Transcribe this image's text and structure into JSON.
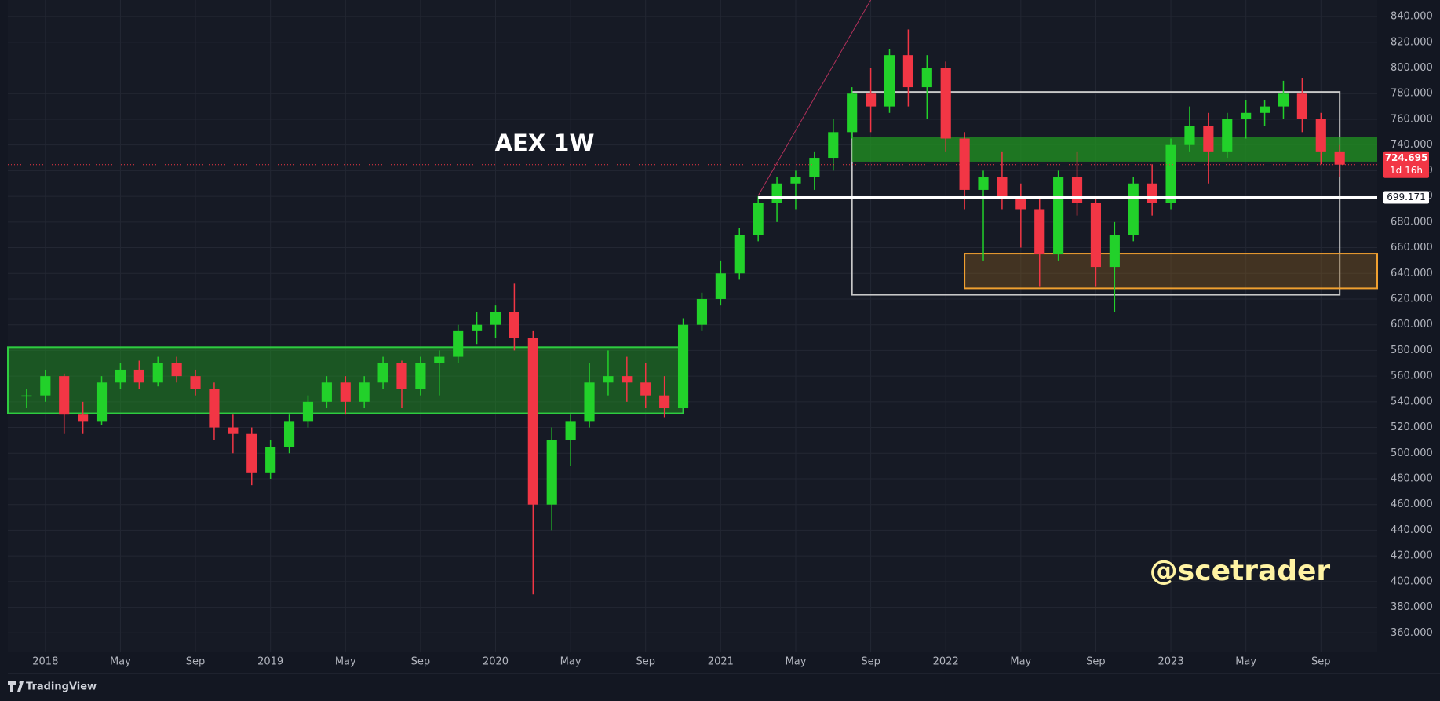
{
  "chart_data": {
    "type": "candlestick",
    "title": "AEX 1W",
    "watermark": "@scetrader",
    "x": [
      "2017-12",
      "2018-01",
      "2018-02",
      "2018-03",
      "2018-04",
      "2018-05",
      "2018-06",
      "2018-07",
      "2018-08",
      "2018-09",
      "2018-10",
      "2018-11",
      "2018-12",
      "2019-01",
      "2019-02",
      "2019-03",
      "2019-04",
      "2019-05",
      "2019-06",
      "2019-07",
      "2019-08",
      "2019-09",
      "2019-10",
      "2019-11",
      "2019-12",
      "2020-01",
      "2020-02",
      "2020-03",
      "2020-04",
      "2020-05",
      "2020-06",
      "2020-07",
      "2020-08",
      "2020-09",
      "2020-10",
      "2020-11",
      "2020-12",
      "2021-01",
      "2021-02",
      "2021-03",
      "2021-04",
      "2021-05",
      "2021-06",
      "2021-07",
      "2021-08",
      "2021-09",
      "2021-10",
      "2021-11",
      "2021-12",
      "2022-01",
      "2022-02",
      "2022-03",
      "2022-04",
      "2022-05",
      "2022-06",
      "2022-07",
      "2022-08",
      "2022-09",
      "2022-10",
      "2022-11",
      "2022-12",
      "2023-01",
      "2023-02",
      "2023-03",
      "2023-04",
      "2023-05",
      "2023-06",
      "2023-07",
      "2023-08",
      "2023-09",
      "2023-10"
    ],
    "open": [
      545,
      545,
      560,
      530,
      525,
      555,
      565,
      555,
      570,
      560,
      550,
      520,
      515,
      485,
      505,
      525,
      540,
      555,
      540,
      555,
      570,
      550,
      570,
      575,
      595,
      600,
      610,
      590,
      460,
      510,
      525,
      555,
      560,
      555,
      545,
      535,
      600,
      620,
      640,
      670,
      695,
      710,
      715,
      730,
      750,
      780,
      770,
      810,
      785,
      800,
      745,
      705,
      715,
      700,
      690,
      655,
      715,
      695,
      645,
      670,
      710,
      695,
      740,
      755,
      735,
      760,
      765,
      770,
      780,
      760,
      735
    ],
    "high": [
      550,
      565,
      562,
      540,
      560,
      570,
      572,
      575,
      575,
      565,
      555,
      530,
      520,
      510,
      530,
      545,
      560,
      560,
      560,
      575,
      572,
      575,
      580,
      600,
      610,
      615,
      632,
      595,
      520,
      530,
      570,
      580,
      575,
      570,
      560,
      605,
      625,
      650,
      675,
      700,
      715,
      720,
      735,
      760,
      785,
      800,
      815,
      830,
      810,
      805,
      750,
      720,
      735,
      710,
      700,
      720,
      735,
      700,
      680,
      715,
      725,
      745,
      770,
      765,
      765,
      775,
      775,
      790,
      792,
      765,
      740
    ],
    "low": [
      535,
      540,
      515,
      515,
      522,
      550,
      550,
      552,
      555,
      545,
      510,
      500,
      475,
      480,
      500,
      520,
      535,
      530,
      535,
      550,
      535,
      545,
      545,
      570,
      585,
      590,
      580,
      390,
      440,
      490,
      520,
      545,
      540,
      535,
      528,
      535,
      595,
      615,
      635,
      665,
      680,
      690,
      705,
      720,
      745,
      750,
      765,
      770,
      760,
      735,
      690,
      650,
      690,
      660,
      630,
      650,
      685,
      630,
      610,
      665,
      685,
      690,
      735,
      710,
      730,
      745,
      755,
      760,
      750,
      725,
      715
    ],
    "close": [
      545,
      560,
      530,
      525,
      555,
      565,
      555,
      570,
      560,
      550,
      520,
      515,
      485,
      505,
      525,
      540,
      555,
      540,
      555,
      570,
      550,
      570,
      575,
      595,
      600,
      610,
      590,
      460,
      510,
      525,
      555,
      560,
      555,
      545,
      535,
      600,
      620,
      640,
      670,
      695,
      710,
      715,
      730,
      750,
      780,
      770,
      810,
      785,
      800,
      745,
      705,
      715,
      700,
      690,
      655,
      715,
      695,
      645,
      670,
      710,
      695,
      740,
      755,
      735,
      760,
      765,
      770,
      780,
      760,
      735,
      724.695
    ],
    "up_color": "#22d12a",
    "down_color": "#f23645",
    "xlim": [
      "2017-11",
      "2023-12"
    ],
    "ylim": [
      345.5,
      852.9
    ],
    "xticks": [
      {
        "value": "2018-01",
        "label": "2018"
      },
      {
        "value": "2018-05",
        "label": "May"
      },
      {
        "value": "2018-09",
        "label": "Sep"
      },
      {
        "value": "2019-01",
        "label": "2019"
      },
      {
        "value": "2019-05",
        "label": "May"
      },
      {
        "value": "2019-09",
        "label": "Sep"
      },
      {
        "value": "2020-01",
        "label": "2020"
      },
      {
        "value": "2020-05",
        "label": "May"
      },
      {
        "value": "2020-09",
        "label": "Sep"
      },
      {
        "value": "2021-01",
        "label": "2021"
      },
      {
        "value": "2021-05",
        "label": "May"
      },
      {
        "value": "2021-09",
        "label": "Sep"
      },
      {
        "value": "2022-01",
        "label": "2022"
      },
      {
        "value": "2022-05",
        "label": "May"
      },
      {
        "value": "2022-09",
        "label": "Sep"
      },
      {
        "value": "2023-01",
        "label": "2023"
      },
      {
        "value": "2023-05",
        "label": "May"
      },
      {
        "value": "2023-09",
        "label": "Sep"
      }
    ],
    "yticks": [
      {
        "value": 360,
        "label": "360.000"
      },
      {
        "value": 380,
        "label": "380.000"
      },
      {
        "value": 400,
        "label": "400.000"
      },
      {
        "value": 420,
        "label": "420.000"
      },
      {
        "value": 440,
        "label": "440.000"
      },
      {
        "value": 460,
        "label": "460.000"
      },
      {
        "value": 480,
        "label": "480.000"
      },
      {
        "value": 500,
        "label": "500.000"
      },
      {
        "value": 520,
        "label": "520.000"
      },
      {
        "value": 540,
        "label": "540.000"
      },
      {
        "value": 560,
        "label": "560.000"
      },
      {
        "value": 580,
        "label": "580.000"
      },
      {
        "value": 600,
        "label": "600.000"
      },
      {
        "value": 620,
        "label": "620.000"
      },
      {
        "value": 640,
        "label": "640.000"
      },
      {
        "value": 660,
        "label": "660.000"
      },
      {
        "value": 680,
        "label": "680.000"
      },
      {
        "value": 700,
        "label": "700.000"
      },
      {
        "value": 720,
        "label": "720.000"
      },
      {
        "value": 740,
        "label": "740.000"
      },
      {
        "value": 760,
        "label": "760.000"
      },
      {
        "value": 780,
        "label": "780.000"
      },
      {
        "value": 800,
        "label": "800.000"
      },
      {
        "value": 820,
        "label": "820.000"
      },
      {
        "value": 840,
        "label": "840.000"
      }
    ],
    "grid": true,
    "last_price": 724.695,
    "countdown": "1d 16h",
    "horizontal_lines": [
      {
        "value": 699.171,
        "from": "2021-03",
        "color": "#ffffff"
      }
    ],
    "zones": [
      {
        "from": "2017-11",
        "to": "2020-11",
        "low": 531,
        "high": 582.5,
        "fill": "rgba(34,160,34,0.45)",
        "stroke": "#2ecc40"
      },
      {
        "from": "2021-08",
        "to": "2023-10",
        "low": 623.3,
        "high": 781.3,
        "fill": "none",
        "stroke": "#c8c8c8"
      },
      {
        "from": "2021-08",
        "to": "2023-12",
        "low": 727,
        "high": 746.3,
        "fill": "rgba(34,150,34,0.75)",
        "stroke": "none"
      },
      {
        "from": "2022-02",
        "to": "2023-12",
        "low": 628.3,
        "high": 655.4,
        "fill": "rgba(150,100,30,0.35)",
        "stroke": "#f0a030"
      }
    ],
    "trendlines": [
      {
        "from": "2021-03",
        "from_value": 700.5,
        "to": "2021-09",
        "to_value": 852.9,
        "color": "#b0305a"
      }
    ]
  },
  "footer": {
    "brand": "TradingView"
  }
}
